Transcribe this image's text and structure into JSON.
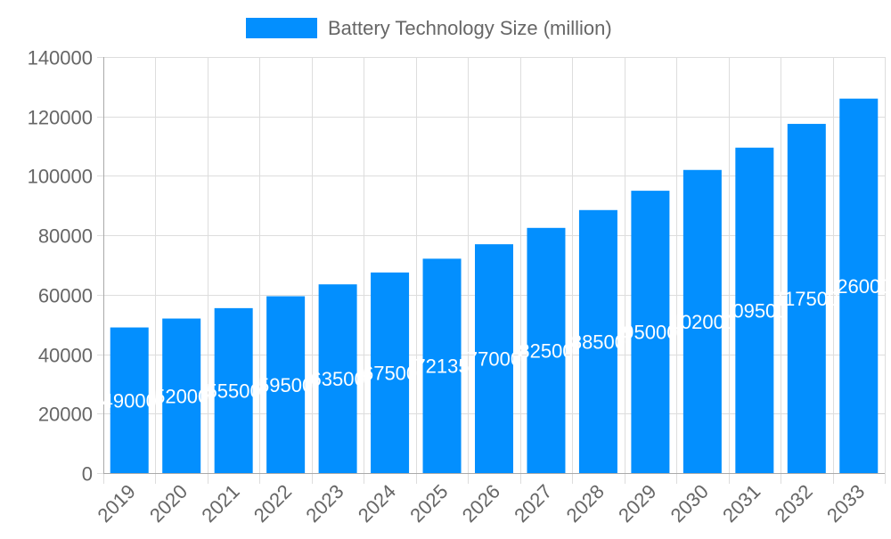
{
  "chart_data": {
    "type": "bar",
    "title": "",
    "xlabel": "",
    "ylabel": "",
    "ylim": [
      0,
      140000
    ],
    "yticks": [
      0,
      20000,
      40000,
      60000,
      80000,
      100000,
      120000,
      140000
    ],
    "grid": true,
    "legend_position": "top",
    "categories": [
      "2019",
      "2020",
      "2021",
      "2022",
      "2023",
      "2024",
      "2025",
      "2026",
      "2027",
      "2028",
      "2029",
      "2030",
      "2031",
      "2032",
      "2033"
    ],
    "series": [
      {
        "name": "Battery Technology Size (million)",
        "color": "#038ffe",
        "values": [
          49000,
          52000,
          55500,
          59500,
          63500,
          67500,
          72135,
          77000,
          82500,
          88500,
          95000,
          102000,
          109500,
          117500,
          126000
        ]
      }
    ],
    "data_labels": true
  }
}
